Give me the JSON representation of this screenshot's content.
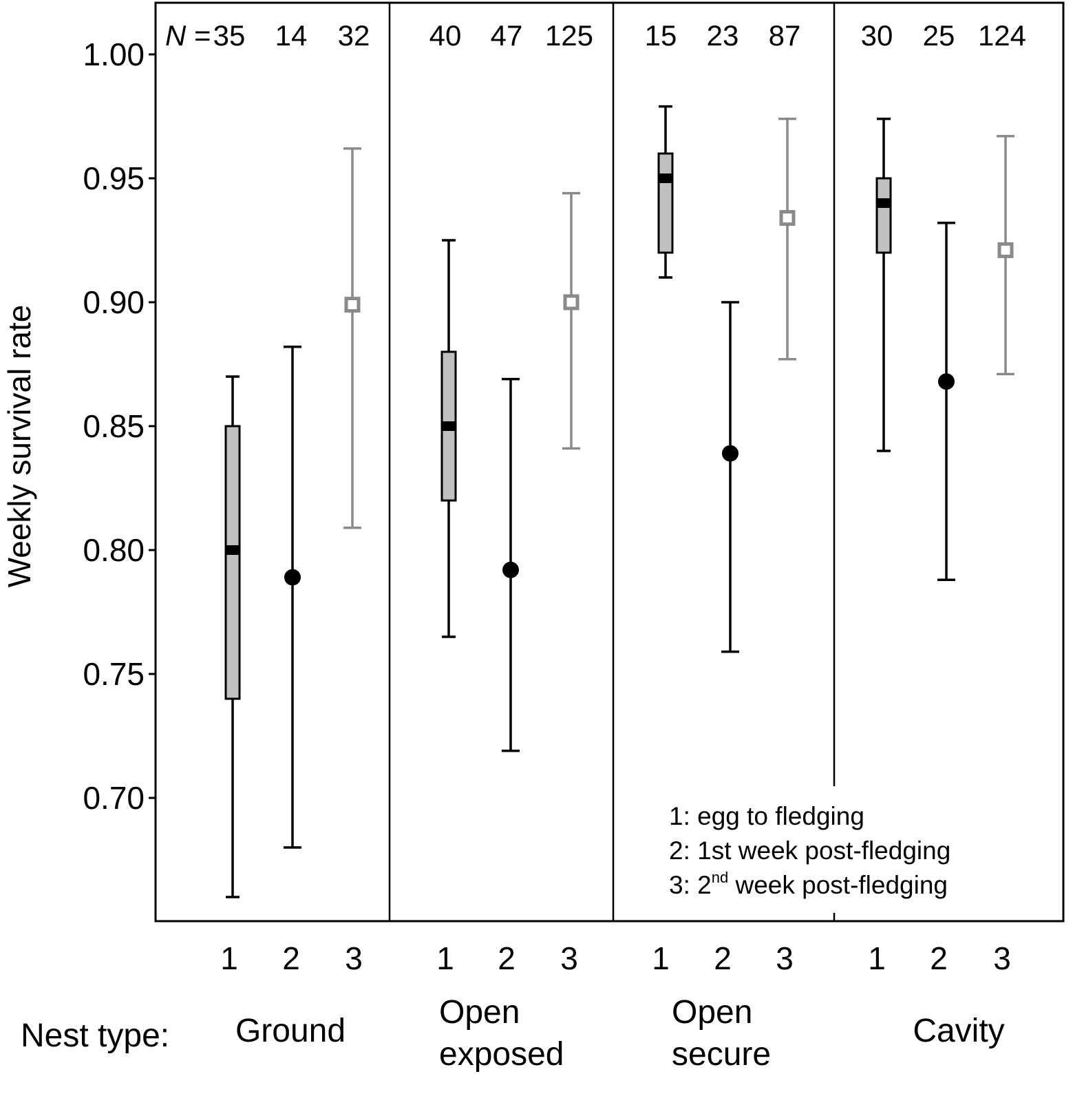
{
  "chart_data": {
    "type": "box-and-point",
    "ylabel": "Weekly survival rate",
    "xaxis_prefix": "Nest type:",
    "ylim": [
      0.66,
      1.02
    ],
    "yticks": [
      "0.70",
      "0.75",
      "0.80",
      "0.85",
      "0.90",
      "0.95",
      "1.00"
    ],
    "n_prefix_italic": "N",
    "n_prefix_rest": " = ",
    "categories": [
      "1",
      "2",
      "3"
    ],
    "legend": {
      "item1": "1: egg to fledging",
      "item2": "2: 1st week post-fledging",
      "item3_pre": "3: 2",
      "item3_sup": "nd",
      "item3_post": " week post-fledging"
    },
    "groups": [
      {
        "name": [
          "Ground"
        ],
        "n": [
          "35",
          "14",
          "32"
        ],
        "egg": {
          "low": 0.66,
          "q1": 0.74,
          "median": 0.8,
          "q3": 0.85,
          "high": 0.87
        },
        "week1": {
          "value": 0.789,
          "low": 0.68,
          "high": 0.882
        },
        "week2": {
          "value": 0.899,
          "low": 0.809,
          "high": 0.962
        }
      },
      {
        "name": [
          "Open",
          "exposed"
        ],
        "n": [
          "40",
          "47",
          "125"
        ],
        "egg": {
          "low": 0.765,
          "q1": 0.82,
          "median": 0.85,
          "q3": 0.88,
          "high": 0.925
        },
        "week1": {
          "value": 0.792,
          "low": 0.719,
          "high": 0.869
        },
        "week2": {
          "value": 0.9,
          "low": 0.841,
          "high": 0.944
        }
      },
      {
        "name": [
          "Open",
          "secure"
        ],
        "n": [
          "15",
          "23",
          "87"
        ],
        "egg": {
          "low": 0.91,
          "q1": 0.92,
          "median": 0.95,
          "q3": 0.96,
          "high": 0.979
        },
        "week1": {
          "value": 0.839,
          "low": 0.759,
          "high": 0.9
        },
        "week2": {
          "value": 0.934,
          "low": 0.877,
          "high": 0.974
        }
      },
      {
        "name": [
          "Cavity"
        ],
        "n": [
          "30",
          "25",
          "124"
        ],
        "egg": {
          "low": 0.84,
          "q1": 0.92,
          "median": 0.94,
          "q3": 0.95,
          "high": 0.974
        },
        "week1": {
          "value": 0.868,
          "low": 0.788,
          "high": 0.932
        },
        "week2": {
          "value": 0.921,
          "low": 0.871,
          "high": 0.967
        }
      }
    ],
    "colors": {
      "black": "#000000",
      "box_fill": "#c0c0c0",
      "grey": "#8a8a8a"
    }
  }
}
